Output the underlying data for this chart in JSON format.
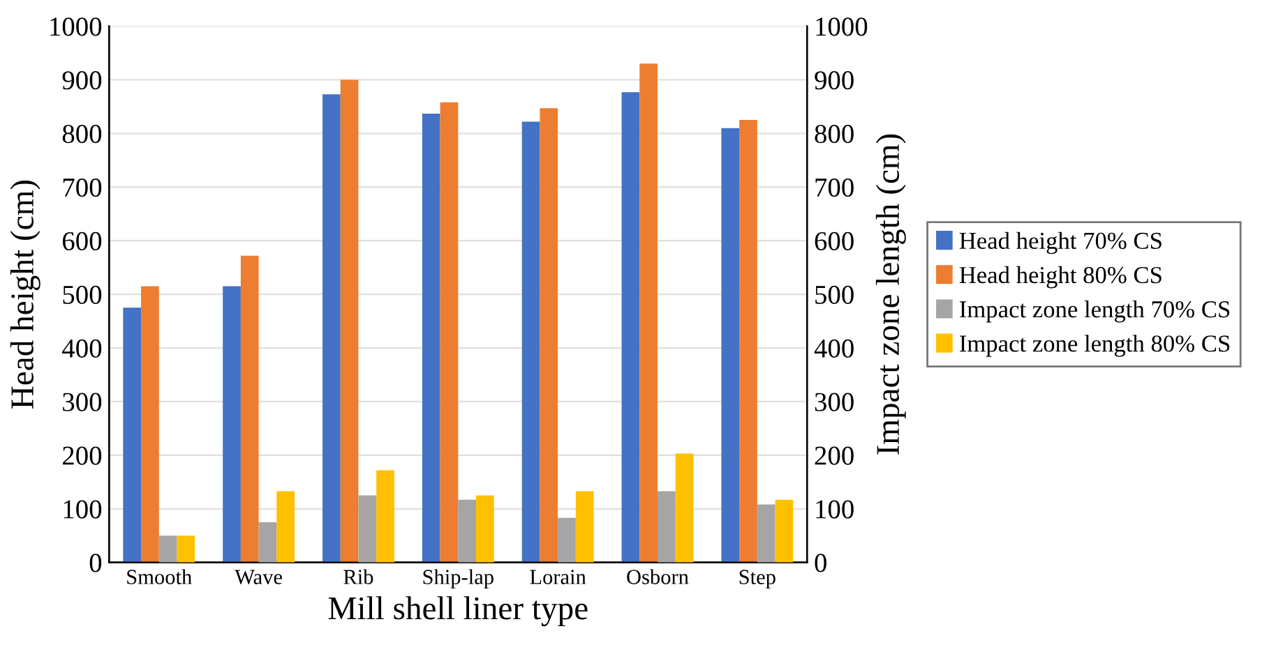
{
  "chart_data": {
    "type": "bar",
    "xlabel": "Mill shell liner type",
    "ylabel": "Head height (cm)",
    "y2label": "Impact zone length (cm)",
    "categories": [
      "Smooth",
      "Wave",
      "Rib",
      "Ship-lap",
      "Lorain",
      "Osborn",
      "Step"
    ],
    "series": [
      {
        "name": "Head height 70% CS",
        "color": "#4472c4",
        "values": [
          475,
          515,
          873,
          837,
          822,
          877,
          810
        ]
      },
      {
        "name": "Head height 80% CS",
        "color": "#ed7d31",
        "values": [
          515,
          572,
          900,
          858,
          847,
          930,
          825
        ]
      },
      {
        "name": "Impact zone length 70% CS",
        "color": "#a5a5a5",
        "axis": "y2",
        "values": [
          50,
          75,
          125,
          117,
          83,
          133,
          108
        ]
      },
      {
        "name": "Impact zone length 80% CS",
        "color": "#ffc000",
        "axis": "y2",
        "values": [
          50,
          133,
          172,
          125,
          133,
          203,
          117
        ]
      }
    ],
    "ylim": [
      0,
      1000
    ],
    "yticks": [
      0,
      100,
      200,
      300,
      400,
      500,
      600,
      700,
      800,
      900,
      1000
    ],
    "y2lim": [
      0,
      1000
    ],
    "y2ticks": [
      0,
      100,
      200,
      300,
      400,
      500,
      600,
      700,
      800,
      900,
      1000
    ],
    "grid": "y",
    "legend": "right"
  }
}
